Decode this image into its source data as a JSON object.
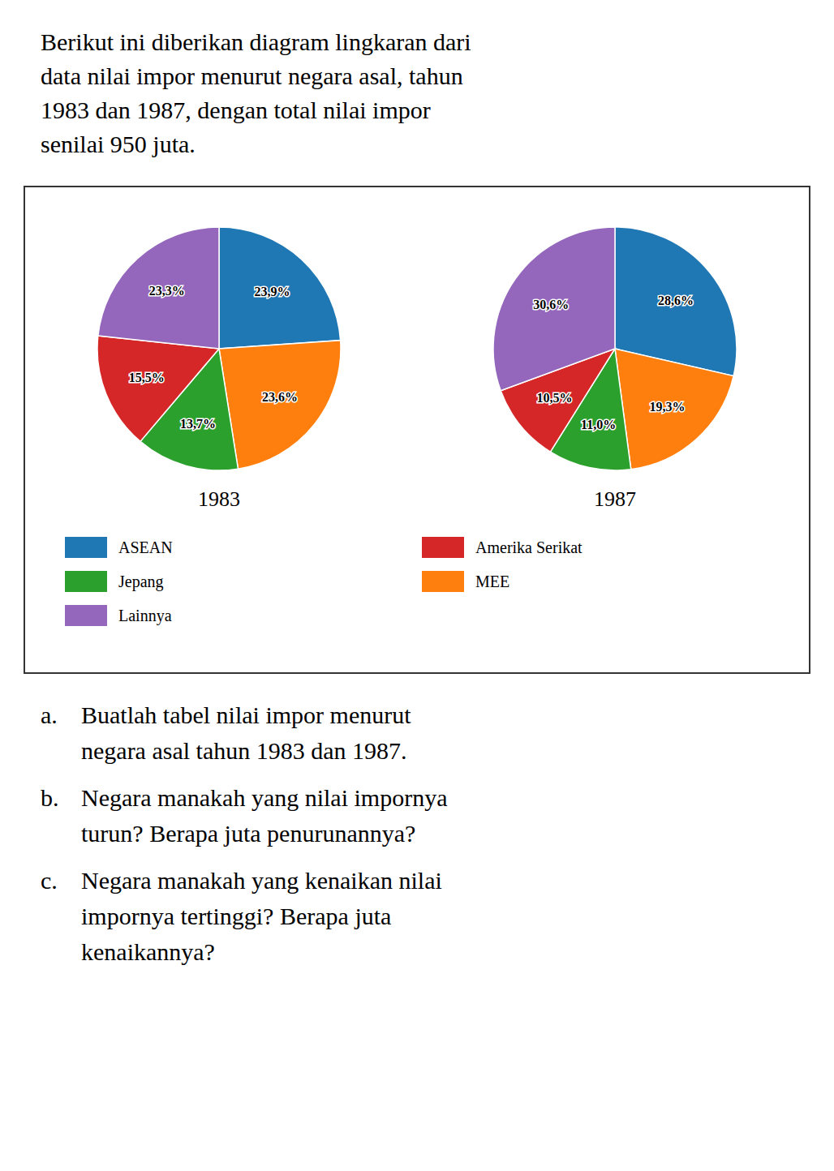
{
  "title": [
    "Berikut ini diberikan diagram lingkaran dari",
    "data nilai impor menurut negara asal, tahun",
    "1983 dan 1987, dengan total nilai impor",
    "senilai 950 juta."
  ],
  "chart_data": [
    {
      "type": "pie",
      "title": "1983",
      "categories": [
        "ASEAN",
        "MEE",
        "Jepang",
        "Amerika Serikat",
        "Lainnya"
      ],
      "values": [
        23.9,
        23.6,
        13.7,
        15.5,
        23.3
      ],
      "value_labels": [
        "23,9%",
        "23,6%",
        "13,7%",
        "15,5%",
        "23,3%"
      ],
      "data_labels": true,
      "legend": "bottom"
    },
    {
      "type": "pie",
      "title": "1987",
      "categories": [
        "ASEAN",
        "MEE",
        "Jepang",
        "Amerika Serikat",
        "Lainnya"
      ],
      "values": [
        28.6,
        19.3,
        11.0,
        10.5,
        30.6
      ],
      "value_labels": [
        "28,6%",
        "19,3%",
        "11,0%",
        "10,5%",
        "30,6%"
      ],
      "data_labels": true
    }
  ],
  "annotations": [
    {
      "label": "a.",
      "lines": [
        "Buatlah tabel nilai impor menurut",
        "negara asal tahun 1983 dan 1987."
      ]
    },
    {
      "label": "b.",
      "lines": [
        "Negara manakah yang nilai impornya",
        "turun? Berapa juta penurunannya?"
      ]
    },
    {
      "label": "c.",
      "lines": [
        "Negara manakah yang kenaikan nilai",
        "impornya tertinggi? Berapa juta",
        "kenaikannya?"
      ]
    }
  ]
}
